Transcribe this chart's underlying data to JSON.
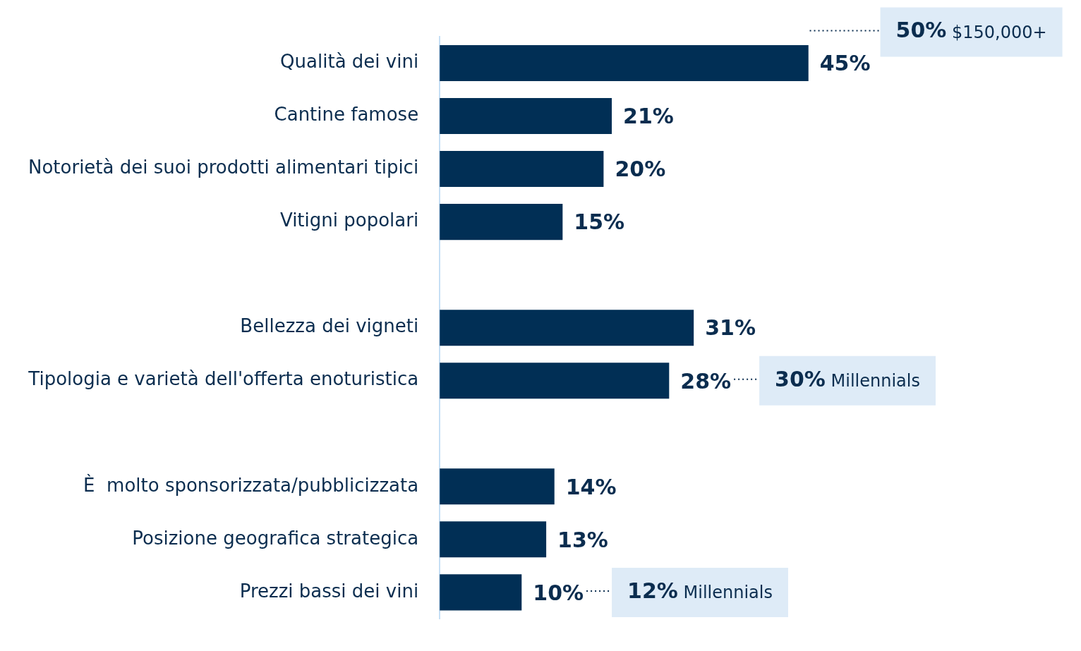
{
  "chart_data": {
    "type": "bar",
    "orientation": "horizontal",
    "categories": [
      "Qualità dei vini",
      "Cantine famose",
      "Notorietà dei suoi prodotti alimentari tipici",
      "Vitigni popolari",
      null,
      "Bellezza dei vigneti",
      "Tipologia e varietà dell'offerta enoturistica",
      null,
      "È  molto sponsorizzata/pubblicizzata",
      "Posizione geografica strategica",
      "Prezzi bassi dei vini"
    ],
    "values": [
      45,
      21,
      20,
      15,
      null,
      31,
      28,
      null,
      14,
      13,
      10
    ],
    "value_labels": [
      "45%",
      "21%",
      "20%",
      "15%",
      null,
      "31%",
      "28%",
      null,
      "14%",
      "13%",
      "10%"
    ],
    "color": "#012f55",
    "tick_labels": "y",
    "legend": false,
    "annotations": [
      "50% $150,000+",
      "30% Millennials",
      "12% Millennials"
    ]
  }
}
